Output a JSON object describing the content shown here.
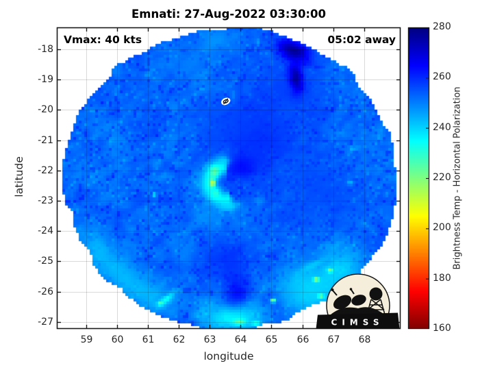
{
  "chart_data": {
    "type": "heatmap",
    "title": "Emnati: 27-Aug-2022 03:30:00",
    "storm_name": "Emnati",
    "annotations": {
      "vmax": "Vmax: 40 kts",
      "time_offset": "05:02 away"
    },
    "axes": {
      "xlabel": "longitude",
      "ylabel": "latitude",
      "xticks": [
        59,
        60,
        61,
        62,
        63,
        64,
        65,
        66,
        67,
        68
      ],
      "yticks": [
        -18,
        -19,
        -20,
        -21,
        -22,
        -23,
        -24,
        -25,
        -26,
        -27
      ],
      "xlim": [
        58.05,
        69.18
      ],
      "ylim": [
        -27.23,
        -17.28
      ],
      "grid": true
    },
    "colorbar": {
      "label": "Brightness Temp - Horizontal Polarization",
      "min": 160,
      "max": 280,
      "ticks": [
        160,
        180,
        200,
        220,
        240,
        260,
        280
      ],
      "colormap": "jet (dark red at 160 K bottom, dark navy at 280 K top)"
    },
    "storm_marker": {
      "lon": 63.52,
      "lat": -19.72
    },
    "swath": {
      "center_lon": 63.68,
      "center_lat": -22.23,
      "radius_lon_deg": 5.39,
      "radius_lat_deg": 4.95
    },
    "background_temp_k": 252.5,
    "features": [
      {
        "name": "warm-core-anvil",
        "kind": "blob",
        "lon": 64.4,
        "lat": -20.9,
        "rx": 1.5,
        "ry": 1.2,
        "temp": 261,
        "s": 0.85,
        "soft": true
      },
      {
        "name": "warm-east-of-eye",
        "kind": "blob",
        "lon": 64.05,
        "lat": -21.9,
        "rx": 0.75,
        "ry": 0.6,
        "temp": 265,
        "s": 0.9
      },
      {
        "name": "warm-upper-right",
        "kind": "blob",
        "lon": 65.6,
        "lat": -19.3,
        "rx": 1.2,
        "ry": 1.0,
        "temp": 258,
        "s": 0.8,
        "soft": true
      },
      {
        "name": "warm-right",
        "kind": "blob",
        "lon": 66.4,
        "lat": -22.8,
        "rx": 1.6,
        "ry": 1.4,
        "temp": 257,
        "s": 0.7,
        "soft": true
      },
      {
        "name": "warm-above-eye",
        "kind": "blob",
        "lon": 63.45,
        "lat": -20.4,
        "rx": 0.9,
        "ry": 0.7,
        "temp": 256,
        "s": 0.6,
        "soft": true
      },
      {
        "name": "cold-top-center",
        "kind": "blob",
        "lon": 63.2,
        "lat": -17.75,
        "rx": 0.75,
        "ry": 0.5,
        "temp": 247,
        "s": 0.75,
        "soft": true
      },
      {
        "name": "cold-top-center2",
        "kind": "blob",
        "lon": 62.35,
        "lat": -18.4,
        "rx": 0.6,
        "ry": 0.45,
        "temp": 250,
        "s": 0.6,
        "soft": true
      },
      {
        "name": "navy-wedge-top",
        "kind": "blob",
        "lon": 65.72,
        "lat": -18.05,
        "rx": 0.82,
        "ry": 0.45,
        "rot": -24,
        "temp": 277,
        "s": 1,
        "jag": true
      },
      {
        "name": "navy-wedge-top-tail",
        "kind": "blob",
        "lon": 65.8,
        "lat": -18.95,
        "rx": 0.3,
        "ry": 0.72,
        "rot": 6,
        "temp": 276,
        "s": 1,
        "jag": true
      },
      {
        "name": "warm-bottom-center",
        "kind": "blob",
        "lon": 63.6,
        "lat": -24.9,
        "rx": 0.85,
        "ry": 0.75,
        "temp": 260,
        "s": 0.8,
        "soft": true,
        "jag": true
      },
      {
        "name": "navy-wedge-bottom",
        "kind": "blob",
        "lon": 63.85,
        "lat": -26.2,
        "rx": 0.62,
        "ry": 1.1,
        "rot": 3,
        "temp": 266,
        "s": 0.95,
        "jag": true
      },
      {
        "name": "eye-interior",
        "kind": "blob",
        "lon": 63.62,
        "lat": -22.28,
        "rx": 0.26,
        "ry": 0.2,
        "temp": 260,
        "s": 0.85
      },
      {
        "name": "eyewall-hook",
        "kind": "arc",
        "lon": 63.52,
        "lat": -22.42,
        "r": 0.55,
        "w": 0.21,
        "a0": 80,
        "a1": 295,
        "temp": 233,
        "s": 0.9
      },
      {
        "name": "eyewall-cold-n",
        "kind": "blob",
        "lon": 63.15,
        "lat": -22.05,
        "rx": 0.22,
        "ry": 0.28,
        "temp": 224,
        "s": 0.95
      },
      {
        "name": "eyewall-cold-w",
        "kind": "blob",
        "lon": 63.08,
        "lat": -22.42,
        "rx": 0.13,
        "ry": 0.2,
        "temp": 215,
        "s": 0.95
      },
      {
        "name": "eyewall-yellow-spot",
        "kind": "blob",
        "lon": 63.11,
        "lat": -22.42,
        "rx": 0.07,
        "ry": 0.1,
        "temp": 204,
        "s": 1
      },
      {
        "name": "eyewall-cold-s",
        "kind": "blob",
        "lon": 63.2,
        "lat": -22.75,
        "rx": 0.18,
        "ry": 0.22,
        "temp": 230,
        "s": 0.9
      },
      {
        "name": "eyewall-curl-s",
        "kind": "blob",
        "lon": 63.62,
        "lat": -23.18,
        "rx": 0.5,
        "ry": 0.22,
        "rot": 10,
        "temp": 239,
        "s": 0.85
      },
      {
        "name": "eyewall-cap-n",
        "kind": "blob",
        "lon": 63.45,
        "lat": -21.68,
        "rx": 0.3,
        "ry": 0.18,
        "temp": 240,
        "s": 0.85
      },
      {
        "name": "band-se-of-eye",
        "kind": "blob",
        "lon": 64.6,
        "lat": -23.0,
        "rx": 0.25,
        "ry": 0.18,
        "temp": 247,
        "s": 0.8
      },
      {
        "name": "band-sw-tail",
        "kind": "blob",
        "lon": 62.9,
        "lat": -23.6,
        "rx": 0.35,
        "ry": 0.5,
        "rot": 20,
        "temp": 248,
        "s": 0.65,
        "soft": true
      },
      {
        "name": "band-sw-tail2",
        "kind": "blob",
        "lon": 62.2,
        "lat": -24.6,
        "rx": 0.3,
        "ry": 0.6,
        "rot": 25,
        "temp": 250,
        "s": 0.55,
        "soft": true
      },
      {
        "name": "edgeband-sw",
        "kind": "edge",
        "e0": 0.93,
        "w": 0.07,
        "a0": 196,
        "a1": 254,
        "temp": 241,
        "s": 0.8
      },
      {
        "name": "edgeband-s",
        "kind": "edge",
        "e0": 0.94,
        "w": 0.07,
        "a0": 254,
        "a1": 288,
        "temp": 233,
        "s": 0.85
      },
      {
        "name": "edgeband-se",
        "kind": "edge",
        "e0": 0.9,
        "w": 0.09,
        "a0": 288,
        "a1": 332,
        "temp": 237,
        "s": 0.8
      },
      {
        "name": "cold-bottom-right",
        "kind": "blob",
        "lon": 66.15,
        "lat": -25.9,
        "rx": 1.5,
        "ry": 1.05,
        "rot": -20,
        "temp": 240,
        "s": 0.8
      },
      {
        "name": "cold-streak-right",
        "kind": "blob",
        "lon": 66.3,
        "lat": -25.15,
        "rx": 0.75,
        "ry": 0.2,
        "rot": 28,
        "temp": 240,
        "s": 0.8
      },
      {
        "name": "cold-streak-right2",
        "kind": "blob",
        "lon": 67.1,
        "lat": -24.5,
        "rx": 0.5,
        "ry": 0.16,
        "rot": 28,
        "temp": 243,
        "s": 0.7
      },
      {
        "name": "yellow-spot-se1",
        "kind": "blob",
        "lon": 66.45,
        "lat": -25.6,
        "rx": 0.13,
        "ry": 0.1,
        "temp": 210,
        "s": 1
      },
      {
        "name": "yellow-spot-se2",
        "kind": "blob",
        "lon": 66.9,
        "lat": -25.3,
        "rx": 0.12,
        "ry": 0.1,
        "temp": 217,
        "s": 0.95
      },
      {
        "name": "yellow-spot-se3",
        "kind": "blob",
        "lon": 65.05,
        "lat": -26.3,
        "rx": 0.12,
        "ry": 0.09,
        "temp": 212,
        "s": 1
      },
      {
        "name": "yellow-spot-se4",
        "kind": "blob",
        "lon": 66.6,
        "lat": -26.15,
        "rx": 0.13,
        "ry": 0.09,
        "temp": 216,
        "s": 0.95
      },
      {
        "name": "cold-streak-sw",
        "kind": "blob",
        "lon": 61.6,
        "lat": -26.25,
        "rx": 0.45,
        "ry": 0.16,
        "rot": 40,
        "temp": 232,
        "s": 0.9
      },
      {
        "name": "yellow-spot-sw",
        "kind": "blob",
        "lon": 61.4,
        "lat": -26.4,
        "rx": 0.12,
        "ry": 0.08,
        "temp": 220,
        "s": 0.9
      },
      {
        "name": "bottom-edge-green1",
        "kind": "blob",
        "lon": 63.95,
        "lat": -27.0,
        "rx": 0.3,
        "ry": 0.12,
        "temp": 222,
        "s": 0.9
      },
      {
        "name": "bottom-edge-green2",
        "kind": "blob",
        "lon": 64.5,
        "lat": -27.05,
        "rx": 0.22,
        "ry": 0.1,
        "temp": 226,
        "s": 0.85
      },
      {
        "name": "cyan-dot-left",
        "kind": "blob",
        "lon": 61.2,
        "lat": -22.8,
        "rx": 0.1,
        "ry": 0.1,
        "temp": 233,
        "s": 0.95
      },
      {
        "name": "cyan-dot-right",
        "kind": "blob",
        "lon": 67.55,
        "lat": -22.4,
        "rx": 0.14,
        "ry": 0.12,
        "temp": 240,
        "s": 0.85
      },
      {
        "name": "cyan-dot-right2",
        "kind": "blob",
        "lon": 67.6,
        "lat": -21.3,
        "rx": 0.16,
        "ry": 0.13,
        "temp": 243,
        "s": 0.8
      }
    ],
    "logo": {
      "text": "CIMSS"
    },
    "colors": {
      "background": "#ffffff",
      "axis_line": "#1a1a1a",
      "tick_text": "#262626",
      "title_text": "#000000",
      "grid": "rgba(0,0,0,0.15)",
      "logo_circle_fill": "#f4eeda",
      "logo_silhouette": "#111111"
    }
  }
}
